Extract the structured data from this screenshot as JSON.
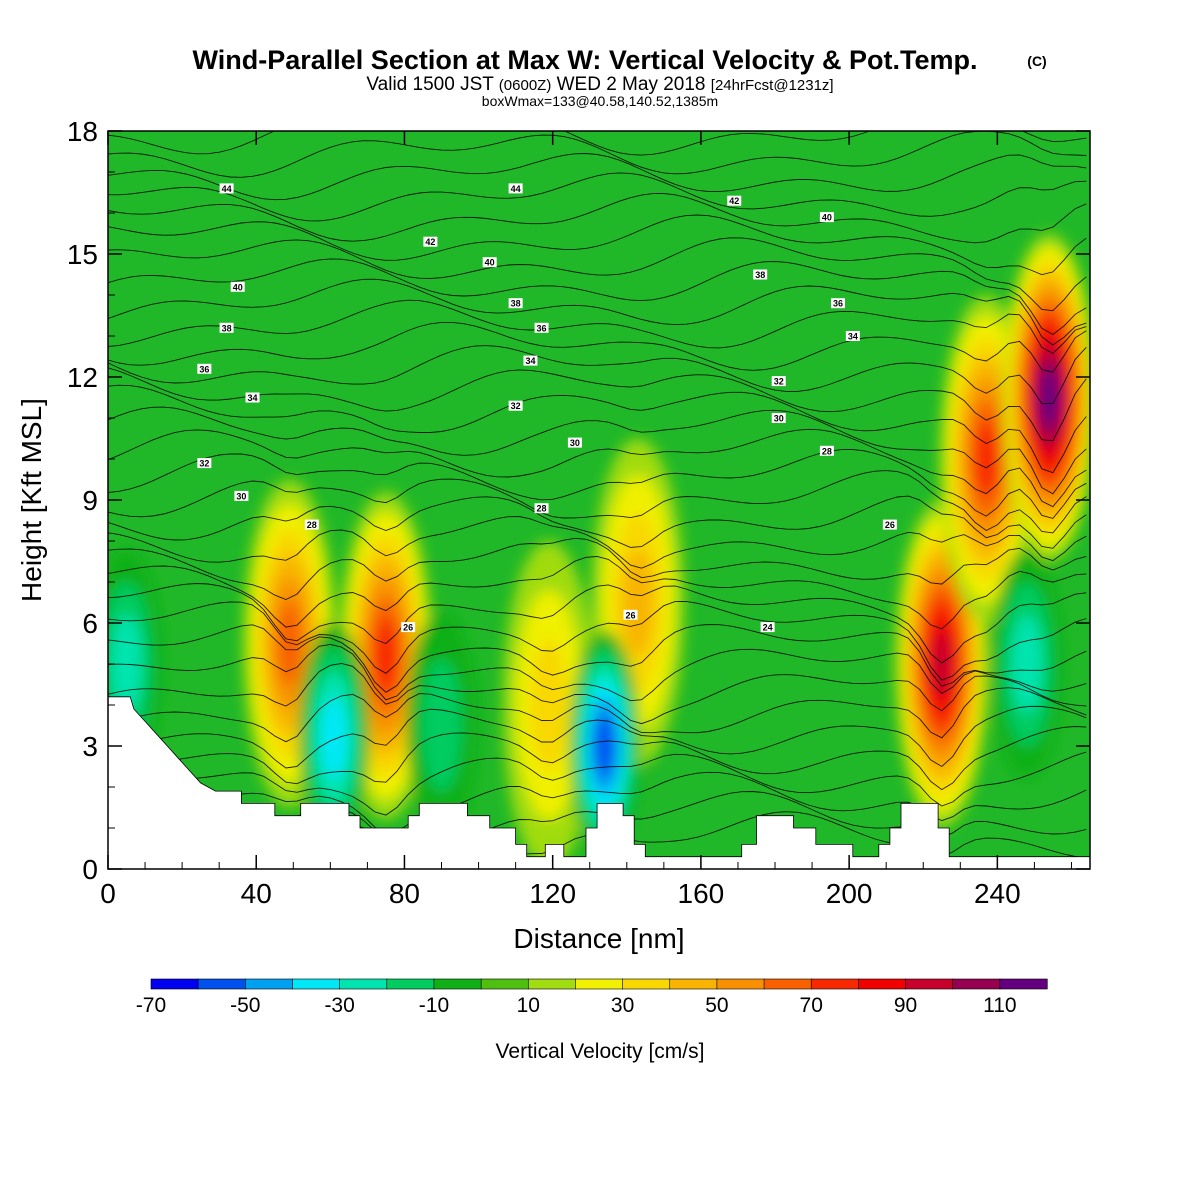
{
  "title": {
    "main": "Wind-Parallel Section at Max W: Vertical Velocity & Pot.Temp.",
    "main_tag": "(C)",
    "valid_prefix": "Valid 1500 JST",
    "valid_utc": "(0600Z)",
    "valid_date": "WED 2 May 2018",
    "forecast": "[24hrFcst@1231z]",
    "box_info": "boxWmax=133@40.58,140.52,1385m"
  },
  "chart_data": {
    "type": "heatmap",
    "xlabel": "Distance [nm]",
    "ylabel": "Height [Kft MSL]",
    "xlim": [
      0,
      265
    ],
    "ylim": [
      0,
      18
    ],
    "x_ticks": [
      "0",
      "40",
      "80",
      "120",
      "160",
      "200",
      "240"
    ],
    "y_ticks": [
      "0",
      "3",
      "6",
      "9",
      "12",
      "15",
      "18"
    ],
    "colorbar": {
      "label": "Vertical Velocity [cm/s]",
      "tick_labels": [
        "-70",
        "-50",
        "-30",
        "-10",
        "10",
        "30",
        "50",
        "70",
        "90",
        "110"
      ],
      "levels": [
        -70,
        -60,
        -50,
        -40,
        -30,
        -20,
        -10,
        0,
        10,
        20,
        30,
        40,
        50,
        60,
        70,
        80,
        90,
        100,
        110,
        120
      ],
      "colors": [
        "#0000f0",
        "#0050f0",
        "#00a0f0",
        "#00e8f8",
        "#00e4b0",
        "#00cc60",
        "#10b018",
        "#50c010",
        "#a0dc10",
        "#f0f000",
        "#f8d800",
        "#f8b400",
        "#f89000",
        "#f86000",
        "#f82800",
        "#f00000",
        "#c8002c",
        "#960050",
        "#640080"
      ]
    },
    "updraft_cores": [
      {
        "x": 49,
        "z": 5.5,
        "w": 62
      },
      {
        "x": 75,
        "z": 5.2,
        "w": 78
      },
      {
        "x": 119,
        "z": 4.0,
        "w": 38
      },
      {
        "x": 143,
        "z": 6.5,
        "w": 40
      },
      {
        "x": 225,
        "z": 5.0,
        "w": 92
      },
      {
        "x": 237,
        "z": 10.0,
        "w": 72
      },
      {
        "x": 254,
        "z": 11.5,
        "w": 118
      }
    ],
    "downdraft_cores": [
      {
        "x": 61,
        "z": 3.2,
        "w": -48
      },
      {
        "x": 134,
        "z": 3.0,
        "w": -62
      },
      {
        "x": 248,
        "z": 5.0,
        "w": -38
      },
      {
        "x": 5,
        "z": 5.0,
        "w": -30
      },
      {
        "x": 90,
        "z": 3.5,
        "w": -25
      }
    ],
    "theta_contour_labels": [
      {
        "value": "44",
        "x": 32,
        "z": 16.6
      },
      {
        "value": "44",
        "x": 110,
        "z": 16.6
      },
      {
        "value": "42",
        "x": 87,
        "z": 15.3
      },
      {
        "value": "42",
        "x": 169,
        "z": 16.3
      },
      {
        "value": "40",
        "x": 35,
        "z": 14.2
      },
      {
        "value": "40",
        "x": 103,
        "z": 14.8
      },
      {
        "value": "40",
        "x": 194,
        "z": 15.9
      },
      {
        "value": "38",
        "x": 32,
        "z": 13.2
      },
      {
        "value": "38",
        "x": 110,
        "z": 13.8
      },
      {
        "value": "38",
        "x": 176,
        "z": 14.5
      },
      {
        "value": "36",
        "x": 26,
        "z": 12.2
      },
      {
        "value": "36",
        "x": 117,
        "z": 13.2
      },
      {
        "value": "36",
        "x": 197,
        "z": 13.8
      },
      {
        "value": "34",
        "x": 39,
        "z": 11.5
      },
      {
        "value": "34",
        "x": 114,
        "z": 12.4
      },
      {
        "value": "34",
        "x": 201,
        "z": 13.0
      },
      {
        "value": "32",
        "x": 26,
        "z": 9.9
      },
      {
        "value": "32",
        "x": 110,
        "z": 11.3
      },
      {
        "value": "32",
        "x": 181,
        "z": 11.9
      },
      {
        "value": "30",
        "x": 36,
        "z": 9.1
      },
      {
        "value": "30",
        "x": 126,
        "z": 10.4
      },
      {
        "value": "30",
        "x": 181,
        "z": 11.0
      },
      {
        "value": "28",
        "x": 55,
        "z": 8.4
      },
      {
        "value": "28",
        "x": 117,
        "z": 8.8
      },
      {
        "value": "28",
        "x": 194,
        "z": 10.2
      },
      {
        "value": "26",
        "x": 81,
        "z": 5.9
      },
      {
        "value": "26",
        "x": 141,
        "z": 6.2
      },
      {
        "value": "26",
        "x": 211,
        "z": 8.4
      },
      {
        "value": "24",
        "x": 178,
        "z": 5.9
      }
    ],
    "terrain_kft": [
      [
        0,
        4.2
      ],
      [
        6,
        4.2
      ],
      [
        7,
        3.9
      ],
      [
        10,
        3.6
      ],
      [
        13,
        3.3
      ],
      [
        16,
        3.0
      ],
      [
        19,
        2.7
      ],
      [
        22,
        2.4
      ],
      [
        25,
        2.1
      ],
      [
        29,
        1.9
      ],
      [
        36,
        1.9
      ],
      [
        36,
        1.6
      ],
      [
        45,
        1.6
      ],
      [
        45,
        1.3
      ],
      [
        52,
        1.3
      ],
      [
        52,
        1.6
      ],
      [
        65,
        1.6
      ],
      [
        65,
        1.3
      ],
      [
        68,
        1.3
      ],
      [
        68,
        1.0
      ],
      [
        81,
        1.0
      ],
      [
        81,
        1.3
      ],
      [
        84,
        1.3
      ],
      [
        84,
        1.6
      ],
      [
        97,
        1.6
      ],
      [
        97,
        1.3
      ],
      [
        103,
        1.3
      ],
      [
        103,
        1.0
      ],
      [
        110,
        1.0
      ],
      [
        110,
        0.6
      ],
      [
        113,
        0.6
      ],
      [
        113,
        0.3
      ],
      [
        118,
        0.3
      ],
      [
        118,
        0.6
      ],
      [
        123,
        0.6
      ],
      [
        123,
        0.3
      ],
      [
        129,
        0.3
      ],
      [
        129,
        1.0
      ],
      [
        132,
        1.0
      ],
      [
        132,
        1.6
      ],
      [
        139,
        1.6
      ],
      [
        139,
        1.3
      ],
      [
        142,
        1.3
      ],
      [
        142,
        0.6
      ],
      [
        145,
        0.6
      ],
      [
        145,
        0.3
      ],
      [
        171,
        0.3
      ],
      [
        171,
        0.6
      ],
      [
        175,
        0.6
      ],
      [
        175,
        1.3
      ],
      [
        185,
        1.3
      ],
      [
        185,
        1.0
      ],
      [
        191,
        1.0
      ],
      [
        191,
        0.6
      ],
      [
        201,
        0.6
      ],
      [
        201,
        0.3
      ],
      [
        208,
        0.3
      ],
      [
        208,
        0.6
      ],
      [
        211,
        0.6
      ],
      [
        211,
        1.0
      ],
      [
        214,
        1.0
      ],
      [
        214,
        1.6
      ],
      [
        224,
        1.6
      ],
      [
        224,
        1.0
      ],
      [
        227,
        1.0
      ],
      [
        227,
        0.3
      ],
      [
        265,
        0.3
      ]
    ]
  }
}
